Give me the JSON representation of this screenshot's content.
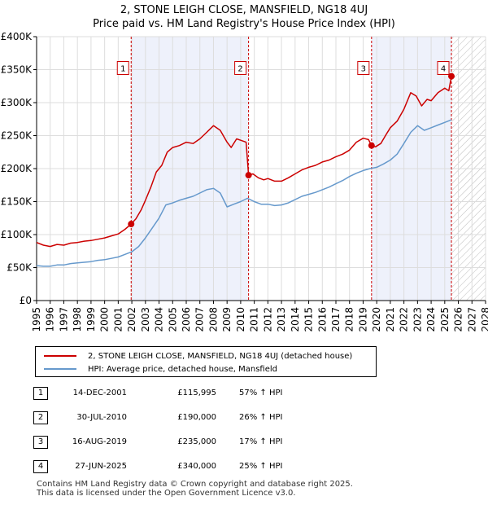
{
  "title": {
    "line1": "2, STONE LEIGH CLOSE, MANSFIELD, NG18 4UJ",
    "line2": "Price paid vs. HM Land Registry's House Price Index (HPI)"
  },
  "colors": {
    "price_line": "#cc0000",
    "hpi_line": "#6699cc",
    "shade": "#eef1fb",
    "grid": "#dddddd",
    "marker_dash": "#cc0000"
  },
  "chart_data": {
    "type": "line",
    "title": "2, STONE LEIGH CLOSE, MANSFIELD, NG18 4UJ — Price paid vs. HM Land Registry's House Price Index (HPI)",
    "xlabel": "",
    "ylabel": "",
    "xlim": [
      1995,
      2028
    ],
    "ylim": [
      0,
      400000
    ],
    "x_ticks": [
      "1995",
      "1996",
      "1997",
      "1998",
      "1999",
      "2000",
      "2001",
      "2002",
      "2003",
      "2004",
      "2005",
      "2006",
      "2007",
      "2008",
      "2009",
      "2010",
      "2011",
      "2012",
      "2013",
      "2014",
      "2015",
      "2016",
      "2017",
      "2018",
      "2019",
      "2020",
      "2021",
      "2022",
      "2023",
      "2024",
      "2025",
      "2026",
      "2027",
      "2028"
    ],
    "y_ticks": [
      {
        "value": 0,
        "label": "£0"
      },
      {
        "value": 50000,
        "label": "£50K"
      },
      {
        "value": 100000,
        "label": "£100K"
      },
      {
        "value": 150000,
        "label": "£150K"
      },
      {
        "value": 200000,
        "label": "£200K"
      },
      {
        "value": 250000,
        "label": "£250K"
      },
      {
        "value": 300000,
        "label": "£300K"
      },
      {
        "value": 350000,
        "label": "£350K"
      },
      {
        "value": 400000,
        "label": "£400K"
      }
    ],
    "shaded_ranges": [
      [
        2001.95,
        2010.58
      ],
      [
        2019.62,
        2025.49
      ]
    ],
    "hatched_range": [
      2025.49,
      2028
    ],
    "series": [
      {
        "name": "2, STONE LEIGH CLOSE, MANSFIELD, NG18 4UJ (detached house)",
        "color": "#cc0000",
        "points": [
          [
            1995.0,
            88000
          ],
          [
            1995.5,
            84000
          ],
          [
            1996.0,
            82000
          ],
          [
            1996.5,
            85000
          ],
          [
            1997.0,
            84000
          ],
          [
            1997.5,
            87000
          ],
          [
            1998.0,
            88000
          ],
          [
            1998.5,
            90000
          ],
          [
            1999.0,
            91000
          ],
          [
            1999.5,
            93000
          ],
          [
            2000.0,
            95000
          ],
          [
            2000.5,
            98000
          ],
          [
            2001.0,
            101000
          ],
          [
            2001.5,
            108000
          ],
          [
            2001.95,
            115995
          ],
          [
            2002.3,
            124000
          ],
          [
            2002.7,
            138000
          ],
          [
            2003.0,
            152000
          ],
          [
            2003.4,
            172000
          ],
          [
            2003.8,
            195000
          ],
          [
            2004.2,
            205000
          ],
          [
            2004.6,
            225000
          ],
          [
            2005.0,
            232000
          ],
          [
            2005.5,
            235000
          ],
          [
            2006.0,
            240000
          ],
          [
            2006.5,
            238000
          ],
          [
            2007.0,
            245000
          ],
          [
            2007.5,
            255000
          ],
          [
            2008.0,
            265000
          ],
          [
            2008.5,
            258000
          ],
          [
            2009.0,
            240000
          ],
          [
            2009.3,
            232000
          ],
          [
            2009.7,
            245000
          ],
          [
            2010.0,
            243000
          ],
          [
            2010.4,
            240000
          ],
          [
            2010.58,
            190000
          ],
          [
            2010.9,
            192000
          ],
          [
            2011.3,
            186000
          ],
          [
            2011.7,
            183000
          ],
          [
            2012.0,
            185000
          ],
          [
            2012.5,
            181000
          ],
          [
            2013.0,
            181000
          ],
          [
            2013.5,
            186000
          ],
          [
            2014.0,
            192000
          ],
          [
            2014.5,
            198000
          ],
          [
            2015.0,
            202000
          ],
          [
            2015.5,
            205000
          ],
          [
            2016.0,
            210000
          ],
          [
            2016.5,
            213000
          ],
          [
            2017.0,
            218000
          ],
          [
            2017.5,
            222000
          ],
          [
            2018.0,
            228000
          ],
          [
            2018.5,
            240000
          ],
          [
            2019.0,
            246000
          ],
          [
            2019.4,
            244000
          ],
          [
            2019.62,
            235000
          ],
          [
            2019.9,
            233000
          ],
          [
            2020.3,
            238000
          ],
          [
            2020.7,
            252000
          ],
          [
            2021.0,
            262000
          ],
          [
            2021.5,
            272000
          ],
          [
            2022.0,
            290000
          ],
          [
            2022.5,
            315000
          ],
          [
            2022.9,
            310000
          ],
          [
            2023.3,
            295000
          ],
          [
            2023.7,
            305000
          ],
          [
            2024.0,
            303000
          ],
          [
            2024.5,
            315000
          ],
          [
            2025.0,
            322000
          ],
          [
            2025.3,
            318000
          ],
          [
            2025.49,
            340000
          ]
        ]
      },
      {
        "name": "HPI: Average price, detached house, Mansfield",
        "color": "#6699cc",
        "points": [
          [
            1995.0,
            53000
          ],
          [
            1995.5,
            52000
          ],
          [
            1996.0,
            52000
          ],
          [
            1996.5,
            54000
          ],
          [
            1997.0,
            54000
          ],
          [
            1997.5,
            56000
          ],
          [
            1998.0,
            57000
          ],
          [
            1998.5,
            58000
          ],
          [
            1999.0,
            59000
          ],
          [
            1999.5,
            61000
          ],
          [
            2000.0,
            62000
          ],
          [
            2000.5,
            64000
          ],
          [
            2001.0,
            66000
          ],
          [
            2001.5,
            70000
          ],
          [
            2002.0,
            74000
          ],
          [
            2002.5,
            82000
          ],
          [
            2003.0,
            95000
          ],
          [
            2003.5,
            110000
          ],
          [
            2004.0,
            125000
          ],
          [
            2004.5,
            145000
          ],
          [
            2005.0,
            148000
          ],
          [
            2005.5,
            152000
          ],
          [
            2006.0,
            155000
          ],
          [
            2006.5,
            158000
          ],
          [
            2007.0,
            163000
          ],
          [
            2007.5,
            168000
          ],
          [
            2008.0,
            170000
          ],
          [
            2008.5,
            163000
          ],
          [
            2009.0,
            142000
          ],
          [
            2009.5,
            146000
          ],
          [
            2010.0,
            150000
          ],
          [
            2010.5,
            155000
          ],
          [
            2011.0,
            150000
          ],
          [
            2011.5,
            146000
          ],
          [
            2012.0,
            146000
          ],
          [
            2012.5,
            144000
          ],
          [
            2013.0,
            145000
          ],
          [
            2013.5,
            148000
          ],
          [
            2014.0,
            153000
          ],
          [
            2014.5,
            158000
          ],
          [
            2015.0,
            161000
          ],
          [
            2015.5,
            164000
          ],
          [
            2016.0,
            168000
          ],
          [
            2016.5,
            172000
          ],
          [
            2017.0,
            177000
          ],
          [
            2017.5,
            182000
          ],
          [
            2018.0,
            188000
          ],
          [
            2018.5,
            193000
          ],
          [
            2019.0,
            197000
          ],
          [
            2019.5,
            200000
          ],
          [
            2020.0,
            202000
          ],
          [
            2020.5,
            207000
          ],
          [
            2021.0,
            213000
          ],
          [
            2021.5,
            222000
          ],
          [
            2022.0,
            238000
          ],
          [
            2022.5,
            255000
          ],
          [
            2023.0,
            265000
          ],
          [
            2023.5,
            258000
          ],
          [
            2024.0,
            262000
          ],
          [
            2024.5,
            266000
          ],
          [
            2025.0,
            270000
          ],
          [
            2025.49,
            274000
          ]
        ]
      }
    ],
    "annotations": [
      {
        "label": "1",
        "x": 2001.95,
        "price": 115995
      },
      {
        "label": "2",
        "x": 2010.58,
        "price": 190000
      },
      {
        "label": "3",
        "x": 2019.62,
        "price": 235000
      },
      {
        "label": "4",
        "x": 2025.49,
        "price": 340000
      }
    ],
    "annotation_box_value": 350000
  },
  "legend": {
    "items": [
      {
        "label": "2, STONE LEIGH CLOSE, MANSFIELD, NG18 4UJ (detached house)",
        "color": "#cc0000"
      },
      {
        "label": "HPI: Average price, detached house, Mansfield",
        "color": "#6699cc"
      }
    ]
  },
  "sales": [
    {
      "num": "1",
      "date": "14-DEC-2001",
      "price": "£115,995",
      "hpi": "57% ↑ HPI"
    },
    {
      "num": "2",
      "date": "30-JUL-2010",
      "price": "£190,000",
      "hpi": "26% ↑ HPI"
    },
    {
      "num": "3",
      "date": "16-AUG-2019",
      "price": "£235,000",
      "hpi": "17% ↑ HPI"
    },
    {
      "num": "4",
      "date": "27-JUN-2025",
      "price": "£340,000",
      "hpi": "25% ↑ HPI"
    }
  ],
  "footer": {
    "line1": "Contains HM Land Registry data © Crown copyright and database right 2025.",
    "line2": "This data is licensed under the Open Government Licence v3.0."
  }
}
